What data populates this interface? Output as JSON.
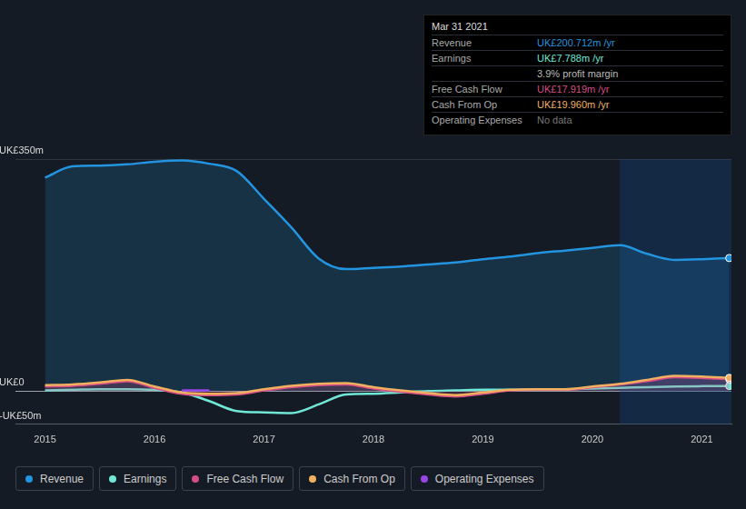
{
  "chart_data": {
    "type": "line",
    "x": [
      2015.0,
      2015.25,
      2015.5,
      2015.75,
      2016.0,
      2016.25,
      2016.5,
      2016.75,
      2017.0,
      2017.25,
      2017.5,
      2017.75,
      2018.0,
      2018.25,
      2018.5,
      2018.75,
      2019.0,
      2019.25,
      2019.5,
      2019.75,
      2020.0,
      2020.25,
      2020.5,
      2020.75,
      2021.0,
      2021.25
    ],
    "series": [
      {
        "name": "Revenue",
        "color": "#2394df",
        "type": "area",
        "values": [
          322,
          339,
          340,
          342,
          346,
          348,
          343,
          332,
          290,
          247,
          200,
          184,
          186,
          188,
          191,
          194,
          199,
          203,
          208,
          212,
          216,
          220,
          207,
          198,
          199,
          200.712
        ]
      },
      {
        "name": "Earnings",
        "color": "#71e7d6",
        "type": "line",
        "values": [
          1,
          2,
          3,
          3,
          2,
          -2,
          -15,
          -30,
          -32,
          -33,
          -20,
          -5,
          -4,
          -2,
          0,
          1,
          2,
          2,
          3,
          3,
          4,
          5,
          6,
          7,
          7.5,
          7.788
        ]
      },
      {
        "name": "Free Cash Flow",
        "color": "#d64d86",
        "type": "area",
        "values": [
          7,
          8,
          11,
          15,
          5,
          -4,
          -6,
          -5,
          1,
          6,
          9,
          10,
          4,
          -1,
          -5,
          -8,
          -4,
          1,
          2,
          2,
          6,
          10,
          15,
          21,
          20,
          17.919
        ]
      },
      {
        "name": "Cash From Op",
        "color": "#f0b060",
        "type": "line",
        "values": [
          9,
          10,
          13,
          17,
          7,
          -2,
          -4,
          -3,
          3,
          8,
          11,
          12,
          6,
          1,
          -3,
          -6,
          -2,
          2,
          3,
          3,
          7,
          11,
          17,
          23,
          22,
          19.96
        ]
      },
      {
        "name": "Operating Expenses",
        "color": "#9a45e8",
        "type": "line",
        "values": [
          null,
          null,
          null,
          null,
          null,
          1,
          1,
          null,
          null,
          null,
          null,
          null,
          null,
          null,
          null,
          null,
          null,
          null,
          null,
          null,
          null,
          null,
          null,
          null,
          null,
          null
        ]
      }
    ],
    "xlim": [
      2014.73,
      2021.27
    ],
    "xticks": [
      2015,
      2016,
      2017,
      2018,
      2019,
      2020,
      2021
    ],
    "ylim": [
      -50,
      350
    ],
    "yticks": [
      {
        "value": -50,
        "label": "-UK£50m"
      },
      {
        "value": 0,
        "label": "UK£0"
      },
      {
        "value": 350,
        "label": "UK£350m"
      }
    ],
    "grid": true
  },
  "info_box": {
    "title": "Mar 31 2021",
    "rows": [
      {
        "label": "Revenue",
        "value": "UK£200.712m /yr",
        "color": "#2394df"
      },
      {
        "label": "Earnings",
        "value": "UK£7.788m /yr",
        "color": "#71e7d6"
      },
      {
        "value": "3.9% profit margin",
        "color": "#bbbbbb"
      },
      {
        "label": "Free Cash Flow",
        "value": "UK£17.919m /yr",
        "color": "#d64d86"
      },
      {
        "label": "Cash From Op",
        "value": "UK£19.960m /yr",
        "color": "#f0b060"
      },
      {
        "label": "Operating Expenses",
        "value": "No data",
        "color": "#777777"
      }
    ]
  }
}
